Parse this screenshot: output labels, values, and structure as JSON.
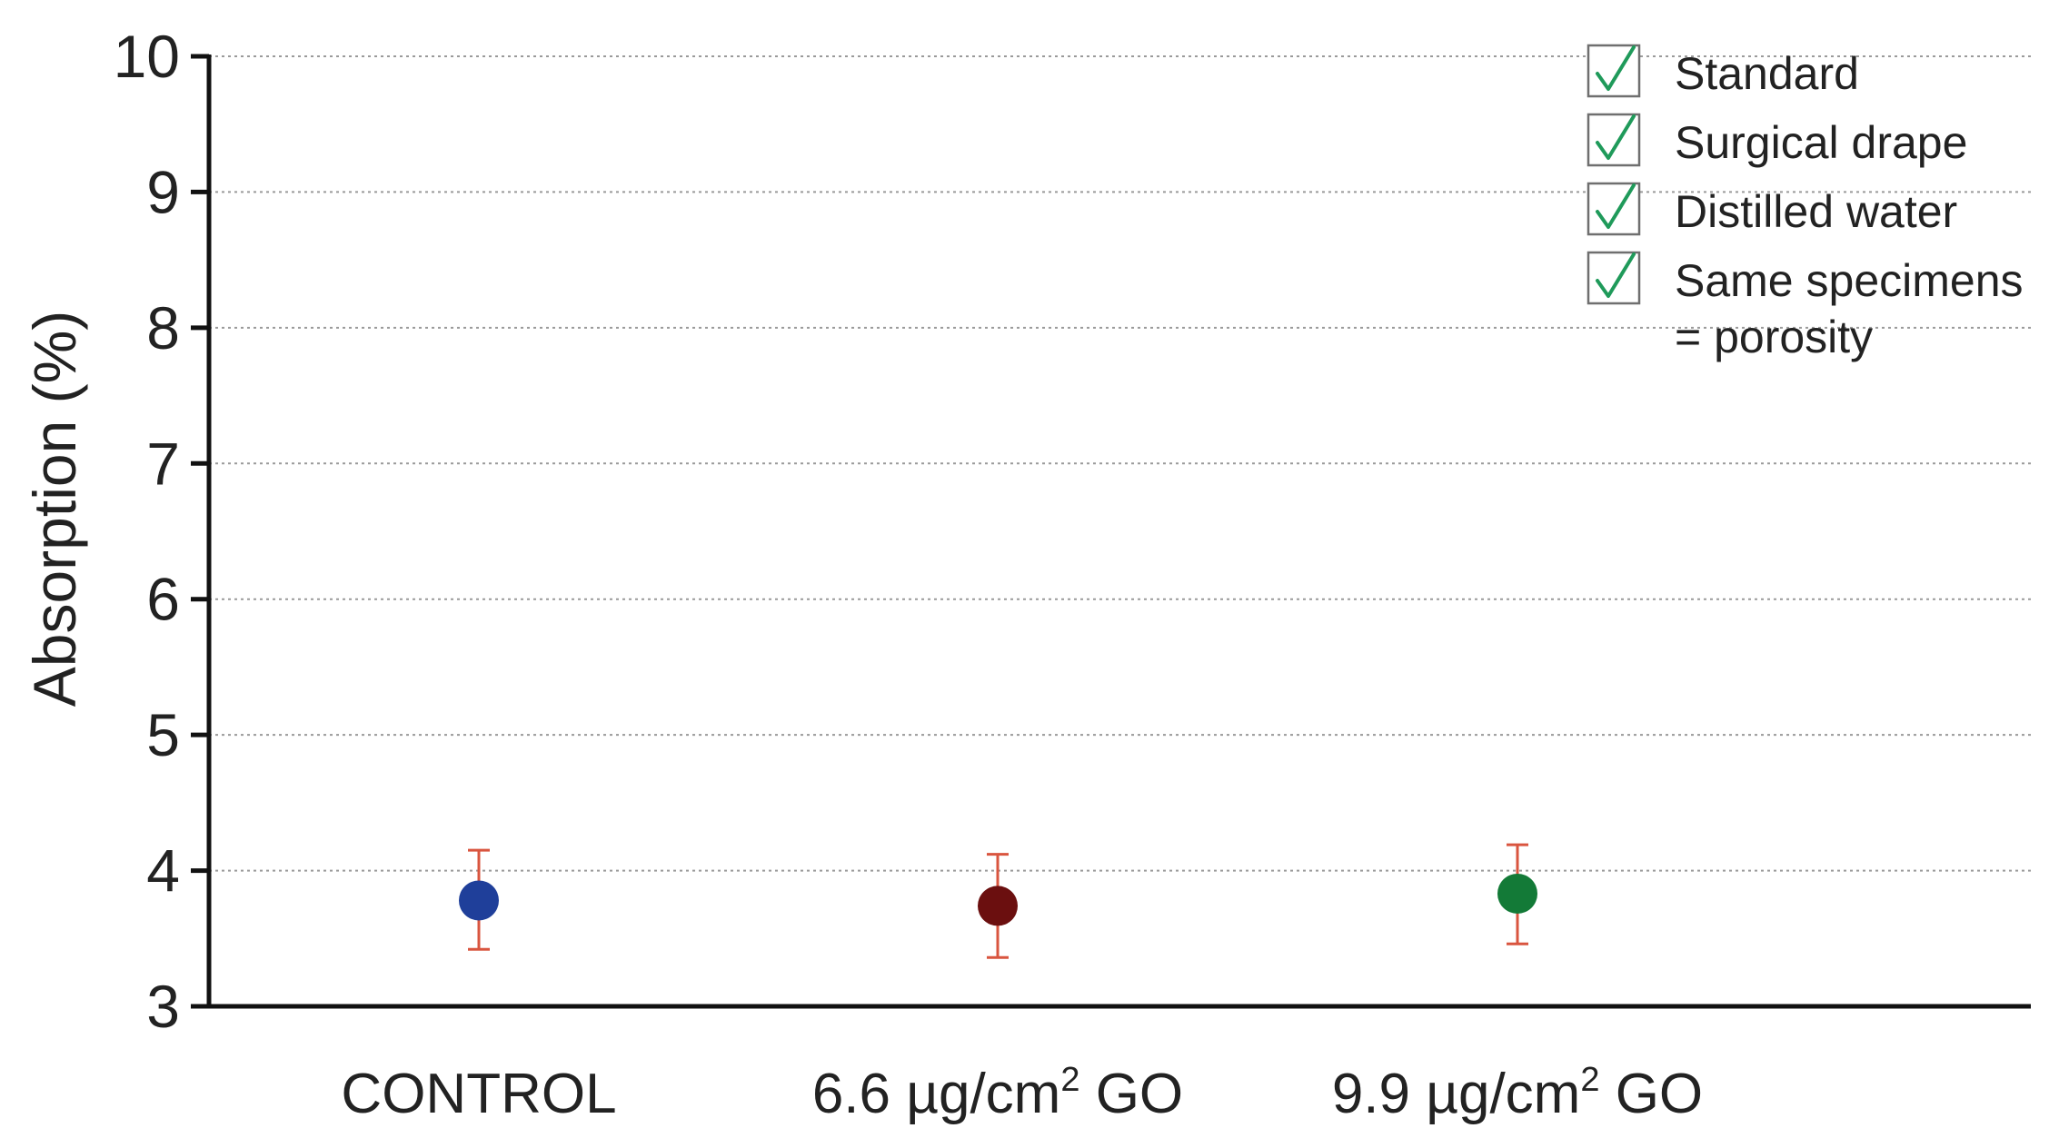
{
  "chart_data": {
    "type": "scatter",
    "title": "",
    "xlabel": "",
    "ylabel": "Absorption (%)",
    "ylim": [
      3,
      10
    ],
    "yticks": [
      3,
      4,
      5,
      6,
      7,
      8,
      9,
      10
    ],
    "ytick_labels": [
      "3",
      "4",
      "5",
      "6",
      "7",
      "8",
      "9",
      "10"
    ],
    "grid": true,
    "categories": [
      {
        "label": "CONTROL",
        "base": "CONTROL",
        "sup": ""
      },
      {
        "label": "6.6 µg/cm² GO",
        "base": "6.6 µg/cm",
        "sup": "2",
        "tail": " GO"
      },
      {
        "label": "9.9 µg/cm² GO",
        "base": "9.9 µg/cm",
        "sup": "2",
        "tail": " GO"
      }
    ],
    "points": [
      {
        "category": "CONTROL",
        "value": 3.78,
        "error_low": 3.42,
        "error_high": 4.15,
        "color": "#1f3f9a"
      },
      {
        "category": "6.6 µg/cm² GO",
        "value": 3.74,
        "error_low": 3.36,
        "error_high": 4.12,
        "color": "#6b0f0f"
      },
      {
        "category": "9.9 µg/cm² GO",
        "value": 3.83,
        "error_low": 3.46,
        "error_high": 4.19,
        "color": "#137a37"
      }
    ],
    "error_bar_color": "#d9553f",
    "legend": {
      "placement": "top-right",
      "check_color": "#1f9a5a",
      "items": [
        {
          "lines": [
            "Standard"
          ]
        },
        {
          "lines": [
            "Surgical drape"
          ]
        },
        {
          "lines": [
            "Distilled water"
          ]
        },
        {
          "lines": [
            "Same specimens",
            "= porosity"
          ]
        }
      ]
    }
  }
}
